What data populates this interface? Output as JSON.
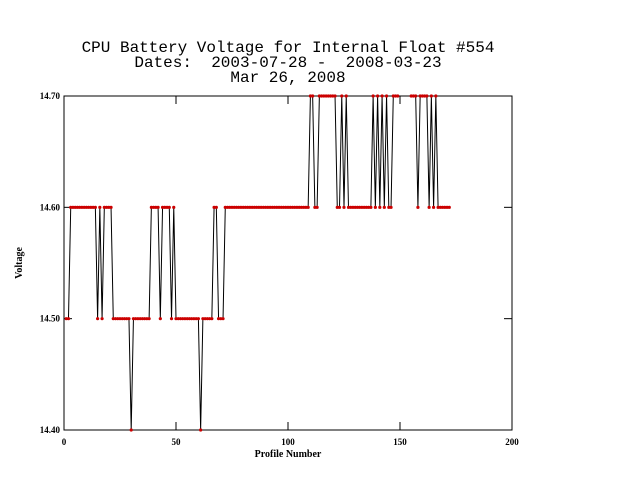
{
  "chart_data": {
    "type": "line",
    "title": "CPU Battery Voltage for Internal Float #554",
    "subtitle": "Dates:  2003-07-28 -  2008-03-23",
    "annotation": "Mar 26, 2008",
    "xlabel": "Profile Number",
    "ylabel": "Voltage",
    "xlim": [
      0,
      200
    ],
    "xticks": [
      0,
      50,
      100,
      150,
      200
    ],
    "ylim": [
      14.4,
      14.7
    ],
    "yticks": [
      {
        "value": 14.4,
        "label": "14.40"
      },
      {
        "value": 14.5,
        "label": "14.50"
      },
      {
        "value": 14.6,
        "label": "14.60"
      },
      {
        "value": 14.7,
        "label": "14.70"
      }
    ],
    "line_color": "#000000",
    "marker_color": "#cc0000",
    "x": [
      1,
      2,
      3,
      4,
      5,
      6,
      7,
      8,
      9,
      10,
      11,
      12,
      13,
      14,
      15,
      16,
      17,
      18,
      19,
      20,
      21,
      22,
      23,
      24,
      25,
      26,
      27,
      28,
      29,
      30,
      31,
      32,
      33,
      34,
      35,
      36,
      37,
      38,
      39,
      40,
      41,
      42,
      43,
      44,
      45,
      46,
      47,
      48,
      49,
      50,
      51,
      52,
      53,
      54,
      55,
      56,
      57,
      58,
      59,
      60,
      61,
      62,
      63,
      64,
      65,
      66,
      67,
      68,
      69,
      70,
      71,
      72,
      73,
      74,
      75,
      76,
      77,
      78,
      79,
      80,
      81,
      82,
      83,
      84,
      85,
      86,
      87,
      88,
      89,
      90,
      91,
      92,
      93,
      94,
      95,
      96,
      97,
      98,
      99,
      100,
      101,
      102,
      103,
      104,
      105,
      106,
      107,
      108,
      109,
      110,
      111,
      112,
      113,
      114,
      115,
      116,
      117,
      118,
      119,
      120,
      121,
      122,
      123,
      124,
      125,
      126,
      127,
      128,
      129,
      130,
      131,
      132,
      133,
      134,
      135,
      136,
      137,
      138,
      139,
      140,
      141,
      142,
      143,
      144,
      145,
      146,
      147,
      148,
      149,
      150,
      151,
      152,
      153,
      154,
      155,
      156,
      157,
      158,
      159,
      160,
      161,
      162,
      163,
      164,
      165,
      166,
      167,
      168,
      169,
      170,
      171,
      172
    ],
    "values": [
      14.5,
      14.5,
      14.6,
      14.6,
      14.6,
      14.6,
      14.6,
      14.6,
      14.6,
      14.6,
      14.6,
      14.6,
      14.6,
      14.6,
      14.5,
      14.6,
      14.5,
      14.6,
      14.6,
      14.6,
      14.6,
      14.5,
      14.5,
      14.5,
      14.5,
      14.5,
      14.5,
      14.5,
      14.5,
      14.4,
      14.5,
      14.5,
      14.5,
      14.5,
      14.5,
      14.5,
      14.5,
      14.5,
      14.6,
      14.6,
      14.6,
      14.6,
      14.5,
      14.6,
      14.6,
      14.6,
      14.6,
      14.5,
      14.6,
      14.5,
      14.5,
      14.5,
      14.5,
      14.5,
      14.5,
      14.5,
      14.5,
      14.5,
      14.5,
      14.5,
      14.4,
      14.5,
      14.5,
      14.5,
      14.5,
      14.5,
      14.6,
      14.6,
      14.5,
      14.5,
      14.5,
      14.6,
      14.6,
      14.6,
      14.6,
      14.6,
      14.6,
      14.6,
      14.6,
      14.6,
      14.6,
      14.6,
      14.6,
      14.6,
      14.6,
      14.6,
      14.6,
      14.6,
      14.6,
      14.6,
      14.6,
      14.6,
      14.6,
      14.6,
      14.6,
      14.6,
      14.6,
      14.6,
      14.6,
      14.6,
      14.6,
      14.6,
      14.6,
      14.6,
      14.6,
      14.6,
      14.6,
      14.6,
      14.6,
      14.7,
      14.7,
      14.6,
      14.6,
      14.7,
      14.7,
      14.7,
      14.7,
      14.7,
      14.7,
      14.7,
      14.7,
      14.6,
      14.6,
      14.7,
      14.6,
      14.7,
      14.6,
      14.6,
      14.6,
      14.6,
      14.6,
      14.6,
      14.6,
      14.6,
      14.6,
      14.6,
      14.6,
      14.7,
      14.6,
      14.7,
      14.6,
      14.7,
      14.6,
      14.7,
      14.6,
      14.6,
      14.7,
      14.7,
      14.7,
      null,
      null,
      null,
      null,
      null,
      14.7,
      14.7,
      14.7,
      14.6,
      14.7,
      14.7,
      14.7,
      14.7,
      14.6,
      14.7,
      14.6,
      14.7,
      14.6,
      14.6,
      14.6,
      14.6,
      14.6,
      14.6
    ]
  }
}
